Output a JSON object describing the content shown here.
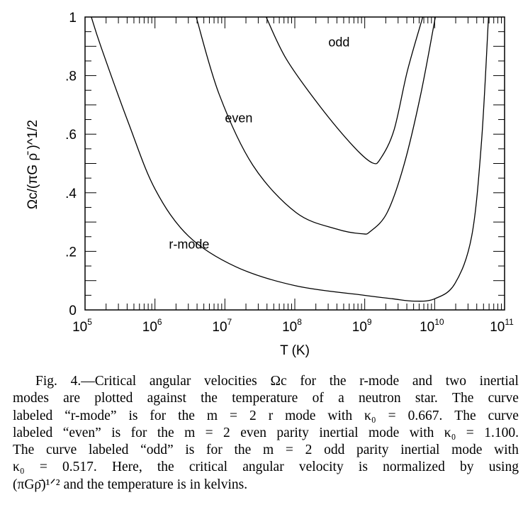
{
  "chart_data": {
    "type": "line",
    "xlabel": "T (K)",
    "ylabel": "Ωc/(πG ρ̄ )^1/2",
    "ylabel_parts": {
      "omega": "Ω",
      "sub": "c",
      "rest": "/(πG ",
      "rho": "ρ",
      "close": " )",
      "exp": "1/2"
    },
    "x_scale": "log",
    "xlim": [
      100000,
      100000000000
    ],
    "ylim": [
      0,
      1
    ],
    "grid": false,
    "x_ticks": [
      {
        "base": "10",
        "exp": "5"
      },
      {
        "base": "10",
        "exp": "6"
      },
      {
        "base": "10",
        "exp": "7"
      },
      {
        "base": "10",
        "exp": "8"
      },
      {
        "base": "10",
        "exp": "9"
      },
      {
        "base": "10",
        "exp": "10"
      },
      {
        "base": "10",
        "exp": "11"
      }
    ],
    "y_ticks": [
      {
        "value": 0,
        "label": "0"
      },
      {
        "value": 0.2,
        "label": ".2"
      },
      {
        "value": 0.4,
        "label": ".4"
      },
      {
        "value": 0.6,
        "label": ".6"
      },
      {
        "value": 0.8,
        "label": ".8"
      },
      {
        "value": 1,
        "label": "1"
      }
    ],
    "series": [
      {
        "name": "r-mode",
        "label_at": {
          "log10_T": 6.2,
          "y": 0.21
        },
        "log10_T": [
          5.09,
          5.23,
          5.62,
          6.0,
          6.48,
          7.16,
          8.02,
          8.99,
          9.4,
          9.71,
          10.0,
          10.29,
          10.53,
          10.67,
          10.77
        ],
        "y": [
          1.0,
          0.897,
          0.639,
          0.413,
          0.252,
          0.147,
          0.082,
          0.05,
          0.038,
          0.03,
          0.038,
          0.09,
          0.252,
          0.574,
          1.0
        ]
      },
      {
        "name": "even",
        "label_at": {
          "log10_T": 7.0,
          "y": 0.64
        },
        "log10_T": [
          6.59,
          6.92,
          7.4,
          8.02,
          8.6,
          8.96,
          9.08,
          9.32,
          9.56,
          9.8,
          10.01
        ],
        "y": [
          1.0,
          0.735,
          0.494,
          0.332,
          0.276,
          0.26,
          0.268,
          0.332,
          0.494,
          0.735,
          1.0
        ]
      },
      {
        "name": "odd",
        "label_at": {
          "log10_T": 8.48,
          "y": 0.9
        },
        "log10_T": [
          7.59,
          7.88,
          8.36,
          8.84,
          9.11,
          9.23,
          9.42,
          9.61,
          9.83
        ],
        "y": [
          1.0,
          0.856,
          0.695,
          0.558,
          0.502,
          0.518,
          0.615,
          0.816,
          1.0
        ]
      }
    ]
  },
  "caption": {
    "lines": [
      "Fig. 4.—Critical angular velocities Ωc for the r-mode and two inertial",
      "modes are plotted against the temperature of a neutron star. The curve",
      "labeled “r-mode” is for the m = 2 r mode with κ₀ = 0.667. The curve",
      "labeled “even” is for the m = 2 even parity inertial mode with κ₀ = 1.100.",
      "The curve labeled “odd” is for the m = 2 odd parity inertial mode with",
      "κ₀ = 0.517. Here, the critical angular velocity is normalized by using",
      "(πGρ̄)¹ᐟ² and the temperature is in kelvins."
    ]
  }
}
